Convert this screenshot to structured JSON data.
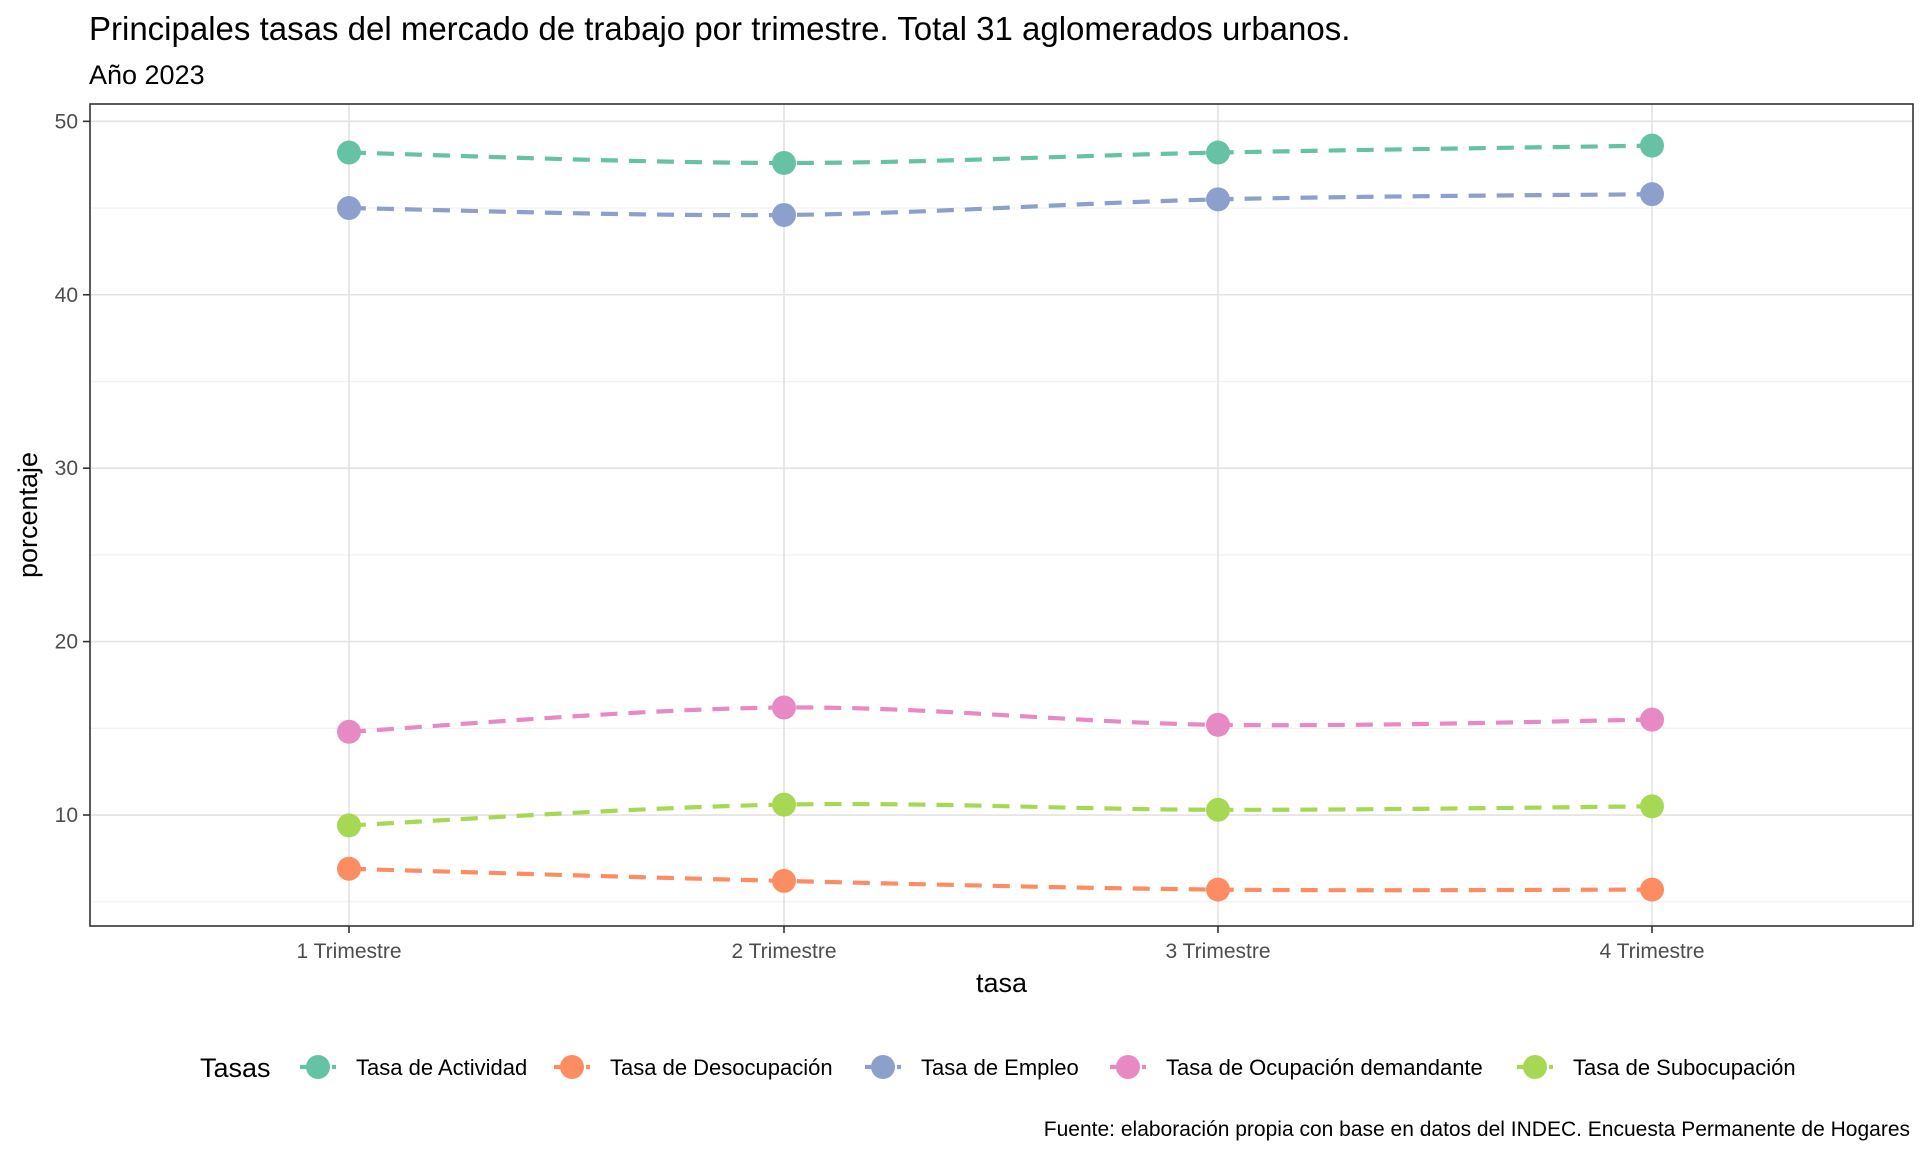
{
  "chart_data": {
    "type": "line",
    "title": "Principales tasas del mercado de trabajo por trimestre. Total 31 aglomerados urbanos.",
    "subtitle": "Año 2023",
    "xlabel": "tasa",
    "ylabel": "porcentaje",
    "categories": [
      "1 Trimestre",
      "2 Trimestre",
      "3 Trimestre",
      "4 Trimestre"
    ],
    "ylim": [
      3.6,
      51.0
    ],
    "yticks": [
      10,
      20,
      30,
      40,
      50
    ],
    "grid": true,
    "line_style": "dashed",
    "legend_title": "Tasas",
    "legend_position": "bottom",
    "caption": "Fuente: elaboración propia con base en datos del INDEC. Encuesta Permanente de Hogares",
    "series": [
      {
        "name": "Tasa de Actividad",
        "color": "#66c2a5",
        "values": [
          48.2,
          47.6,
          48.2,
          48.6
        ]
      },
      {
        "name": "Tasa de Desocupación",
        "color": "#fc8d62",
        "values": [
          6.9,
          6.2,
          5.7,
          5.7
        ]
      },
      {
        "name": "Tasa de Empleo",
        "color": "#8da0cb",
        "values": [
          45.0,
          44.6,
          45.5,
          45.8
        ]
      },
      {
        "name": "Tasa de Ocupación demandante",
        "color": "#e78ac3",
        "values": [
          14.8,
          16.2,
          15.2,
          15.5
        ]
      },
      {
        "name": "Tasa de Subocupación",
        "color": "#a6d854",
        "values": [
          9.4,
          10.6,
          10.3,
          10.5
        ]
      }
    ]
  }
}
